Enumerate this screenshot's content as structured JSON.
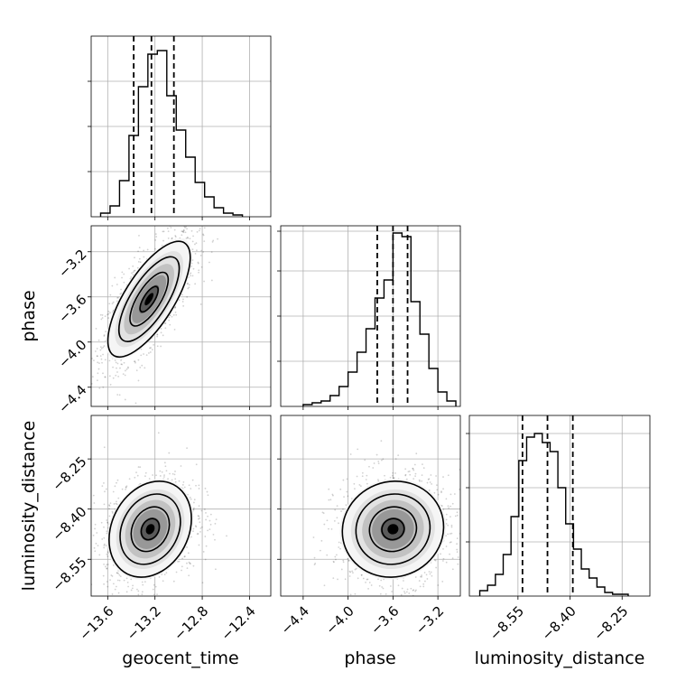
{
  "chart_data": {
    "type": "corner",
    "parameters": [
      "geocent_time",
      "phase",
      "luminosity_distance"
    ],
    "quantiles": {
      "geocent_time": [
        -13.38,
        -13.23,
        -13.04
      ],
      "phase": [
        -3.74,
        -3.6,
        -3.47
      ],
      "luminosity_distance": [
        -8.537,
        -8.465,
        -8.392
      ]
    },
    "panels": [
      {
        "id": "hist-geocent_time",
        "type": "histogram",
        "x": "geocent_time",
        "xlim": [
          -13.74,
          -12.22
        ],
        "ylim": [
          0,
          1
        ],
        "grid": true,
        "ytick_values": [
          0.25,
          0.5,
          0.75
        ],
        "xtick_values": [
          -13.6,
          -13.2,
          -12.8,
          -12.4
        ],
        "bin_edges": [
          -13.66,
          -13.58,
          -13.5,
          -13.42,
          -13.34,
          -13.26,
          -13.18,
          -13.1,
          -13.02,
          -12.94,
          -12.86,
          -12.78,
          -12.7,
          -12.62,
          -12.54,
          -12.46
        ],
        "heights": [
          0.02,
          0.06,
          0.2,
          0.45,
          0.72,
          0.9,
          0.92,
          0.67,
          0.48,
          0.33,
          0.19,
          0.11,
          0.05,
          0.02,
          0.01
        ]
      },
      {
        "id": "kde-phase-vs-geocent_time",
        "type": "density2d",
        "x": "geocent_time",
        "y": "phase",
        "xlim": [
          -13.74,
          -12.22
        ],
        "ylim": [
          -4.57,
          -2.97
        ],
        "grid": true,
        "ytick_labels": [
          "−3.2",
          "−3.6",
          "−4.0",
          "−4.4"
        ],
        "ytick_values": [
          -3.2,
          -3.6,
          -4.0,
          -4.4
        ],
        "xtick_values": [
          -13.6,
          -13.2,
          -12.8,
          -12.4
        ],
        "center": [
          -13.25,
          -3.62
        ],
        "sigma": [
          0.17,
          0.25
        ],
        "correlation": 0.72
      },
      {
        "id": "hist-phase",
        "type": "histogram",
        "x": "phase",
        "xlim": [
          -4.6,
          -3.0
        ],
        "ylim": [
          0,
          1
        ],
        "grid": true,
        "ytick_values": [
          0.25,
          0.5,
          0.75,
          0.97
        ],
        "xtick_values": [
          -4.4,
          -4.0,
          -3.6,
          -3.2
        ],
        "bin_edges": [
          -4.4,
          -4.32,
          -4.24,
          -4.16,
          -4.08,
          -4.0,
          -3.92,
          -3.84,
          -3.76,
          -3.68,
          -3.6,
          -3.52,
          -3.44,
          -3.36,
          -3.28,
          -3.2,
          -3.12,
          -3.04
        ],
        "heights": [
          0.01,
          0.02,
          0.03,
          0.06,
          0.11,
          0.19,
          0.3,
          0.43,
          0.6,
          0.7,
          0.96,
          0.94,
          0.58,
          0.4,
          0.21,
          0.08,
          0.03
        ]
      },
      {
        "id": "kde-luminosity_distance-vs-geocent_time",
        "type": "density2d",
        "x": "geocent_time",
        "y": "luminosity_distance",
        "xlim": [
          -13.74,
          -12.22
        ],
        "ylim": [
          -8.66,
          -8.12
        ],
        "grid": true,
        "ytick_labels": [
          "−8.25",
          "−8.40",
          "−8.55"
        ],
        "ytick_values": [
          -8.25,
          -8.4,
          -8.55
        ],
        "xtick_labels": [
          "−13.6",
          "−13.2",
          "−12.8",
          "−12.4"
        ],
        "xtick_values": [
          -13.6,
          -13.2,
          -12.8,
          -12.4
        ],
        "center": [
          -13.24,
          -8.46
        ],
        "sigma": [
          0.17,
          0.07
        ],
        "correlation": 0.22
      },
      {
        "id": "kde-luminosity_distance-vs-phase",
        "type": "density2d",
        "x": "phase",
        "y": "luminosity_distance",
        "xlim": [
          -4.6,
          -3.0
        ],
        "ylim": [
          -8.66,
          -8.12
        ],
        "grid": true,
        "ytick_values": [
          -8.25,
          -8.4,
          -8.55
        ],
        "xtick_labels": [
          "−4.4",
          "−4.0",
          "−3.6",
          "−3.2"
        ],
        "xtick_values": [
          -4.4,
          -4.0,
          -3.6,
          -3.2
        ],
        "center": [
          -3.6,
          -8.46
        ],
        "sigma": [
          0.22,
          0.07
        ],
        "correlation": 0.05
      },
      {
        "id": "hist-luminosity_distance",
        "type": "histogram",
        "x": "luminosity_distance",
        "xlim": [
          -8.69,
          -8.17
        ],
        "ylim": [
          0,
          1
        ],
        "grid": true,
        "ytick_values": [
          0.3,
          0.6,
          0.9
        ],
        "xtick_labels": [
          "−8.55",
          "−8.40",
          "−8.25"
        ],
        "xtick_values": [
          -8.55,
          -8.4,
          -8.25
        ],
        "bin_edges": [
          -8.66,
          -8.6375,
          -8.615,
          -8.5925,
          -8.57,
          -8.5475,
          -8.525,
          -8.5025,
          -8.48,
          -8.4575,
          -8.435,
          -8.4125,
          -8.39,
          -8.3675,
          -8.345,
          -8.3225,
          -8.3,
          -8.2775,
          -8.255,
          -8.2325
        ],
        "heights": [
          0.03,
          0.06,
          0.12,
          0.23,
          0.44,
          0.75,
          0.88,
          0.9,
          0.85,
          0.8,
          0.6,
          0.4,
          0.26,
          0.15,
          0.1,
          0.05,
          0.02,
          0.01,
          0.01
        ]
      }
    ],
    "xlabels": [
      "geocent_time",
      "phase",
      "luminosity_distance"
    ],
    "ylabels": [
      "phase",
      "luminosity_distance"
    ]
  }
}
